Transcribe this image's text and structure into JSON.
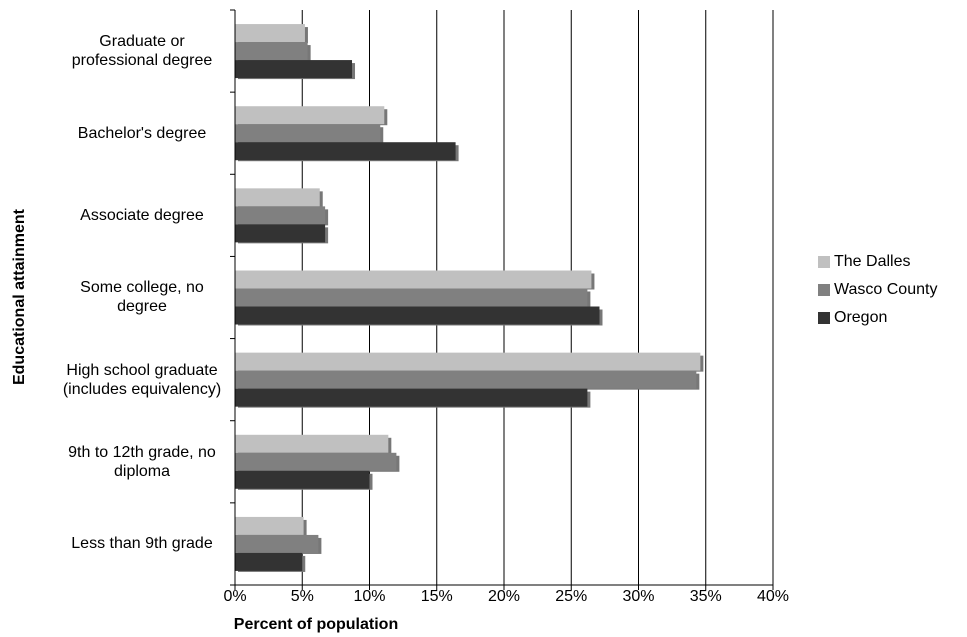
{
  "chart_data": {
    "type": "hbar",
    "x_label": "Percent of population",
    "y_label": "Educational attainment",
    "categories": [
      "Graduate or professional degree",
      "Bachelor's degree",
      "Associate degree",
      "Some college, no degree",
      "High school graduate (includes equivalency)",
      "9th to 12th grade, no diploma",
      "Less than 9th grade"
    ],
    "series": [
      {
        "name": "The Dalles",
        "color": "#c0c0c0",
        "values": [
          5.2,
          11.1,
          6.3,
          26.5,
          34.6,
          11.4,
          5.1
        ]
      },
      {
        "name": "Wasco County",
        "color": "#808080",
        "values": [
          5.4,
          10.8,
          6.7,
          26.2,
          34.3,
          12.0,
          6.2
        ]
      },
      {
        "name": "Oregon",
        "color": "#333333",
        "values": [
          8.7,
          16.4,
          6.7,
          27.1,
          26.2,
          10.0,
          5.0
        ]
      }
    ],
    "xlim": [
      0,
      40
    ],
    "xticks": [
      {
        "value": 0,
        "label": "0%"
      },
      {
        "value": 5,
        "label": "5%"
      },
      {
        "value": 10,
        "label": "10%"
      },
      {
        "value": 15,
        "label": "15%"
      },
      {
        "value": 20,
        "label": "20%"
      },
      {
        "value": 25,
        "label": "25%"
      },
      {
        "value": 30,
        "label": "30%"
      },
      {
        "value": 35,
        "label": "35%"
      },
      {
        "value": 40,
        "label": "40%"
      }
    ],
    "grid": true,
    "legend": "right"
  }
}
